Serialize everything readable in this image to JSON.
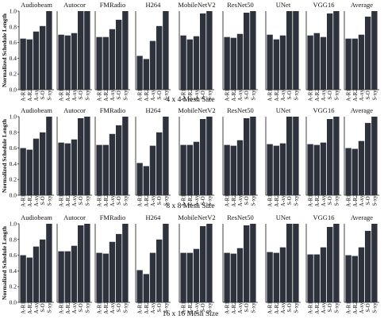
{
  "ylabel": "Normalized Schedule Length",
  "colors": {
    "bar": "#2d323c",
    "axis": "#111111"
  },
  "categories": [
    "A-R1",
    "A-R2",
    "A-xy",
    "S-O",
    "S-xy"
  ],
  "yticks": [
    "0.0",
    "0.2",
    "0.4",
    "0.6",
    "0.8",
    "1.0"
  ],
  "chart_data": [
    {
      "type": "bar",
      "title": "4 x 4 Mesh Size",
      "ylabel": "Normalized Schedule Length",
      "ylim": [
        0,
        1.0
      ],
      "categories": [
        "A-R1",
        "A-R2",
        "A-xy",
        "S-O",
        "S-xy"
      ],
      "panels": [
        {
          "name": "Audiobeam",
          "values": [
            0.65,
            0.64,
            0.74,
            0.81,
            1.0
          ]
        },
        {
          "name": "Autocor",
          "values": [
            0.7,
            0.69,
            0.72,
            1.0,
            1.0
          ]
        },
        {
          "name": "FMRadio",
          "values": [
            0.67,
            0.67,
            0.77,
            0.89,
            1.0
          ]
        },
        {
          "name": "H264",
          "values": [
            0.43,
            0.39,
            0.62,
            0.81,
            1.0
          ]
        },
        {
          "name": "MobileNetV2",
          "values": [
            0.69,
            0.64,
            0.68,
            0.97,
            1.0
          ]
        },
        {
          "name": "ResNet50",
          "values": [
            0.67,
            0.66,
            0.71,
            0.98,
            1.0
          ]
        },
        {
          "name": "UNet",
          "values": [
            0.7,
            0.64,
            0.69,
            1.0,
            1.0
          ]
        },
        {
          "name": "VGG16",
          "values": [
            0.69,
            0.72,
            0.67,
            0.97,
            1.0
          ]
        },
        {
          "name": "Average",
          "values": [
            0.65,
            0.65,
            0.7,
            0.93,
            1.0
          ]
        }
      ]
    },
    {
      "type": "bar",
      "title": "8 x 8 Mesh Size",
      "ylabel": "Normalized Schedule Length",
      "ylim": [
        0,
        1.0
      ],
      "categories": [
        "A-R1",
        "A-R2",
        "A-xy",
        "S-O",
        "S-xy"
      ],
      "panels": [
        {
          "name": "Audiobeam",
          "values": [
            0.6,
            0.58,
            0.72,
            0.8,
            1.0
          ]
        },
        {
          "name": "Autocor",
          "values": [
            0.67,
            0.66,
            0.71,
            0.98,
            1.0
          ]
        },
        {
          "name": "FMRadio",
          "values": [
            0.64,
            0.64,
            0.78,
            0.89,
            1.0
          ]
        },
        {
          "name": "H264",
          "values": [
            0.41,
            0.37,
            0.63,
            0.8,
            1.0
          ]
        },
        {
          "name": "MobileNetV2",
          "values": [
            0.64,
            0.64,
            0.68,
            0.97,
            1.0
          ]
        },
        {
          "name": "ResNet50",
          "values": [
            0.64,
            0.63,
            0.7,
            0.98,
            1.0
          ]
        },
        {
          "name": "UNet",
          "values": [
            0.65,
            0.63,
            0.66,
            1.0,
            1.0
          ]
        },
        {
          "name": "VGG16",
          "values": [
            0.65,
            0.64,
            0.67,
            0.97,
            1.0
          ]
        },
        {
          "name": "Average",
          "values": [
            0.6,
            0.59,
            0.69,
            0.92,
            1.0
          ]
        }
      ]
    },
    {
      "type": "bar",
      "title": "16 x 16 Mesh Size",
      "ylabel": "Normalized Schedule Length",
      "ylim": [
        0,
        1.0
      ],
      "categories": [
        "A-R1",
        "A-R2",
        "A-xy",
        "S-O",
        "S-xy"
      ],
      "panels": [
        {
          "name": "Audiobeam",
          "values": [
            0.6,
            0.57,
            0.71,
            0.8,
            1.0
          ]
        },
        {
          "name": "Autocor",
          "values": [
            0.65,
            0.65,
            0.72,
            0.98,
            1.0
          ]
        },
        {
          "name": "FMRadio",
          "values": [
            0.63,
            0.62,
            0.77,
            0.87,
            1.0
          ]
        },
        {
          "name": "H264",
          "values": [
            0.41,
            0.36,
            0.63,
            0.8,
            1.0
          ]
        },
        {
          "name": "MobileNetV2",
          "values": [
            0.63,
            0.63,
            0.68,
            0.97,
            1.0
          ]
        },
        {
          "name": "ResNet50",
          "values": [
            0.63,
            0.62,
            0.69,
            0.98,
            1.0
          ]
        },
        {
          "name": "UNet",
          "values": [
            0.64,
            0.63,
            0.7,
            1.0,
            1.0
          ]
        },
        {
          "name": "VGG16",
          "values": [
            0.61,
            0.61,
            0.7,
            0.96,
            1.0
          ]
        },
        {
          "name": "Average",
          "values": [
            0.6,
            0.59,
            0.7,
            0.91,
            1.0
          ]
        }
      ]
    }
  ]
}
